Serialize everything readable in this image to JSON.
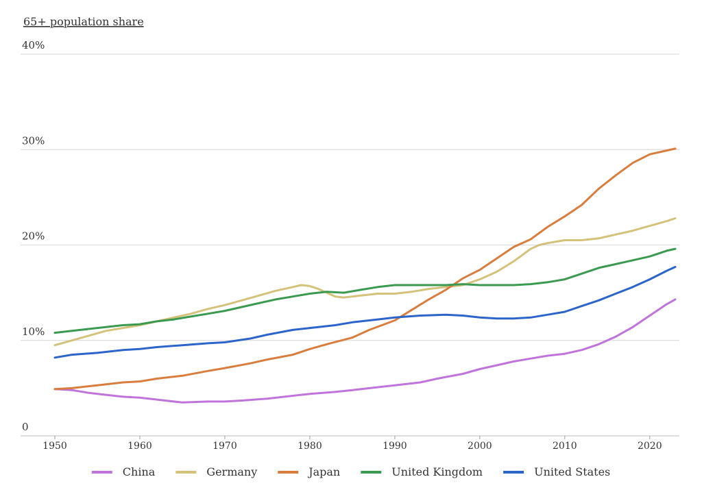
{
  "chart_data": {
    "type": "line",
    "title": "",
    "xlabel": "",
    "ylabel": "65+ population share",
    "xlim": [
      1950,
      2023
    ],
    "ylim": [
      0,
      40
    ],
    "yticks": [
      {
        "value": 0,
        "label": "0"
      },
      {
        "value": 10,
        "label": "10%"
      },
      {
        "value": 20,
        "label": "20%"
      },
      {
        "value": 30,
        "label": "30%"
      },
      {
        "value": 40,
        "label": "40%"
      }
    ],
    "xticks": [
      {
        "value": 1950,
        "label": "1950"
      },
      {
        "value": 1960,
        "label": "1960"
      },
      {
        "value": 1970,
        "label": "1970"
      },
      {
        "value": 1980,
        "label": "1980"
      },
      {
        "value": 1990,
        "label": "1990"
      },
      {
        "value": 2000,
        "label": "2000"
      },
      {
        "value": 2010,
        "label": "2010"
      },
      {
        "value": 2020,
        "label": "2020"
      }
    ],
    "grid": "horizontal",
    "legend_position": "bottom",
    "series": [
      {
        "name": "China",
        "color": "#c074db",
        "points": [
          [
            1950,
            4.9
          ],
          [
            1952,
            4.8
          ],
          [
            1954,
            4.5
          ],
          [
            1956,
            4.3
          ],
          [
            1958,
            4.1
          ],
          [
            1960,
            4.0
          ],
          [
            1963,
            3.7
          ],
          [
            1965,
            3.5
          ],
          [
            1968,
            3.6
          ],
          [
            1970,
            3.6
          ],
          [
            1972,
            3.7
          ],
          [
            1975,
            3.9
          ],
          [
            1978,
            4.2
          ],
          [
            1980,
            4.4
          ],
          [
            1983,
            4.6
          ],
          [
            1985,
            4.8
          ],
          [
            1988,
            5.1
          ],
          [
            1990,
            5.3
          ],
          [
            1993,
            5.6
          ],
          [
            1995,
            6.0
          ],
          [
            1998,
            6.5
          ],
          [
            2000,
            7.0
          ],
          [
            2002,
            7.4
          ],
          [
            2004,
            7.8
          ],
          [
            2006,
            8.1
          ],
          [
            2008,
            8.4
          ],
          [
            2010,
            8.6
          ],
          [
            2012,
            9.0
          ],
          [
            2014,
            9.6
          ],
          [
            2016,
            10.4
          ],
          [
            2018,
            11.4
          ],
          [
            2020,
            12.6
          ],
          [
            2022,
            13.8
          ],
          [
            2023,
            14.3
          ]
        ]
      },
      {
        "name": "Germany",
        "color": "#d4c27a",
        "points": [
          [
            1950,
            9.5
          ],
          [
            1952,
            10.0
          ],
          [
            1954,
            10.5
          ],
          [
            1956,
            11.0
          ],
          [
            1958,
            11.3
          ],
          [
            1960,
            11.6
          ],
          [
            1962,
            12.0
          ],
          [
            1964,
            12.4
          ],
          [
            1966,
            12.8
          ],
          [
            1968,
            13.3
          ],
          [
            1970,
            13.7
          ],
          [
            1972,
            14.2
          ],
          [
            1974,
            14.7
          ],
          [
            1976,
            15.2
          ],
          [
            1978,
            15.6
          ],
          [
            1979,
            15.8
          ],
          [
            1980,
            15.7
          ],
          [
            1981,
            15.4
          ],
          [
            1982,
            15.0
          ],
          [
            1983,
            14.6
          ],
          [
            1984,
            14.5
          ],
          [
            1986,
            14.7
          ],
          [
            1988,
            14.9
          ],
          [
            1990,
            14.9
          ],
          [
            1992,
            15.1
          ],
          [
            1994,
            15.4
          ],
          [
            1996,
            15.6
          ],
          [
            1998,
            15.8
          ],
          [
            2000,
            16.4
          ],
          [
            2002,
            17.2
          ],
          [
            2004,
            18.3
          ],
          [
            2006,
            19.6
          ],
          [
            2007,
            20.0
          ],
          [
            2008,
            20.2
          ],
          [
            2010,
            20.5
          ],
          [
            2012,
            20.5
          ],
          [
            2014,
            20.7
          ],
          [
            2016,
            21.1
          ],
          [
            2018,
            21.5
          ],
          [
            2020,
            22.0
          ],
          [
            2022,
            22.5
          ],
          [
            2023,
            22.8
          ]
        ]
      },
      {
        "name": "Japan",
        "color": "#d97d3e",
        "points": [
          [
            1950,
            4.9
          ],
          [
            1952,
            5.0
          ],
          [
            1955,
            5.3
          ],
          [
            1958,
            5.6
          ],
          [
            1960,
            5.7
          ],
          [
            1962,
            6.0
          ],
          [
            1965,
            6.3
          ],
          [
            1968,
            6.8
          ],
          [
            1970,
            7.1
          ],
          [
            1973,
            7.6
          ],
          [
            1975,
            8.0
          ],
          [
            1978,
            8.5
          ],
          [
            1980,
            9.1
          ],
          [
            1982,
            9.6
          ],
          [
            1985,
            10.3
          ],
          [
            1987,
            11.1
          ],
          [
            1990,
            12.1
          ],
          [
            1992,
            13.2
          ],
          [
            1994,
            14.3
          ],
          [
            1996,
            15.3
          ],
          [
            1998,
            16.5
          ],
          [
            2000,
            17.4
          ],
          [
            2002,
            18.6
          ],
          [
            2004,
            19.8
          ],
          [
            2006,
            20.6
          ],
          [
            2008,
            21.9
          ],
          [
            2010,
            23.0
          ],
          [
            2012,
            24.2
          ],
          [
            2014,
            25.9
          ],
          [
            2016,
            27.3
          ],
          [
            2018,
            28.6
          ],
          [
            2020,
            29.5
          ],
          [
            2022,
            29.9
          ],
          [
            2023,
            30.1
          ]
        ]
      },
      {
        "name": "United Kingdom",
        "color": "#3a9a4f",
        "points": [
          [
            1950,
            10.8
          ],
          [
            1952,
            11.0
          ],
          [
            1955,
            11.3
          ],
          [
            1958,
            11.6
          ],
          [
            1960,
            11.7
          ],
          [
            1962,
            12.0
          ],
          [
            1964,
            12.2
          ],
          [
            1966,
            12.5
          ],
          [
            1968,
            12.8
          ],
          [
            1970,
            13.1
          ],
          [
            1972,
            13.5
          ],
          [
            1974,
            13.9
          ],
          [
            1976,
            14.3
          ],
          [
            1978,
            14.6
          ],
          [
            1980,
            14.9
          ],
          [
            1982,
            15.1
          ],
          [
            1984,
            15.0
          ],
          [
            1986,
            15.3
          ],
          [
            1988,
            15.6
          ],
          [
            1990,
            15.8
          ],
          [
            1992,
            15.8
          ],
          [
            1994,
            15.8
          ],
          [
            1996,
            15.8
          ],
          [
            1998,
            15.9
          ],
          [
            2000,
            15.8
          ],
          [
            2002,
            15.8
          ],
          [
            2004,
            15.8
          ],
          [
            2006,
            15.9
          ],
          [
            2008,
            16.1
          ],
          [
            2010,
            16.4
          ],
          [
            2012,
            17.0
          ],
          [
            2014,
            17.6
          ],
          [
            2016,
            18.0
          ],
          [
            2018,
            18.4
          ],
          [
            2020,
            18.8
          ],
          [
            2022,
            19.4
          ],
          [
            2023,
            19.6
          ]
        ]
      },
      {
        "name": "United States",
        "color": "#2c65c9",
        "points": [
          [
            1950,
            8.2
          ],
          [
            1952,
            8.5
          ],
          [
            1955,
            8.7
          ],
          [
            1958,
            9.0
          ],
          [
            1960,
            9.1
          ],
          [
            1962,
            9.3
          ],
          [
            1965,
            9.5
          ],
          [
            1968,
            9.7
          ],
          [
            1970,
            9.8
          ],
          [
            1973,
            10.2
          ],
          [
            1975,
            10.6
          ],
          [
            1978,
            11.1
          ],
          [
            1980,
            11.3
          ],
          [
            1983,
            11.6
          ],
          [
            1985,
            11.9
          ],
          [
            1988,
            12.2
          ],
          [
            1990,
            12.4
          ],
          [
            1993,
            12.6
          ],
          [
            1996,
            12.7
          ],
          [
            1998,
            12.6
          ],
          [
            2000,
            12.4
          ],
          [
            2002,
            12.3
          ],
          [
            2004,
            12.3
          ],
          [
            2006,
            12.4
          ],
          [
            2008,
            12.7
          ],
          [
            2010,
            13.0
          ],
          [
            2012,
            13.6
          ],
          [
            2014,
            14.2
          ],
          [
            2016,
            14.9
          ],
          [
            2018,
            15.6
          ],
          [
            2020,
            16.4
          ],
          [
            2022,
            17.3
          ],
          [
            2023,
            17.7
          ]
        ]
      }
    ]
  }
}
